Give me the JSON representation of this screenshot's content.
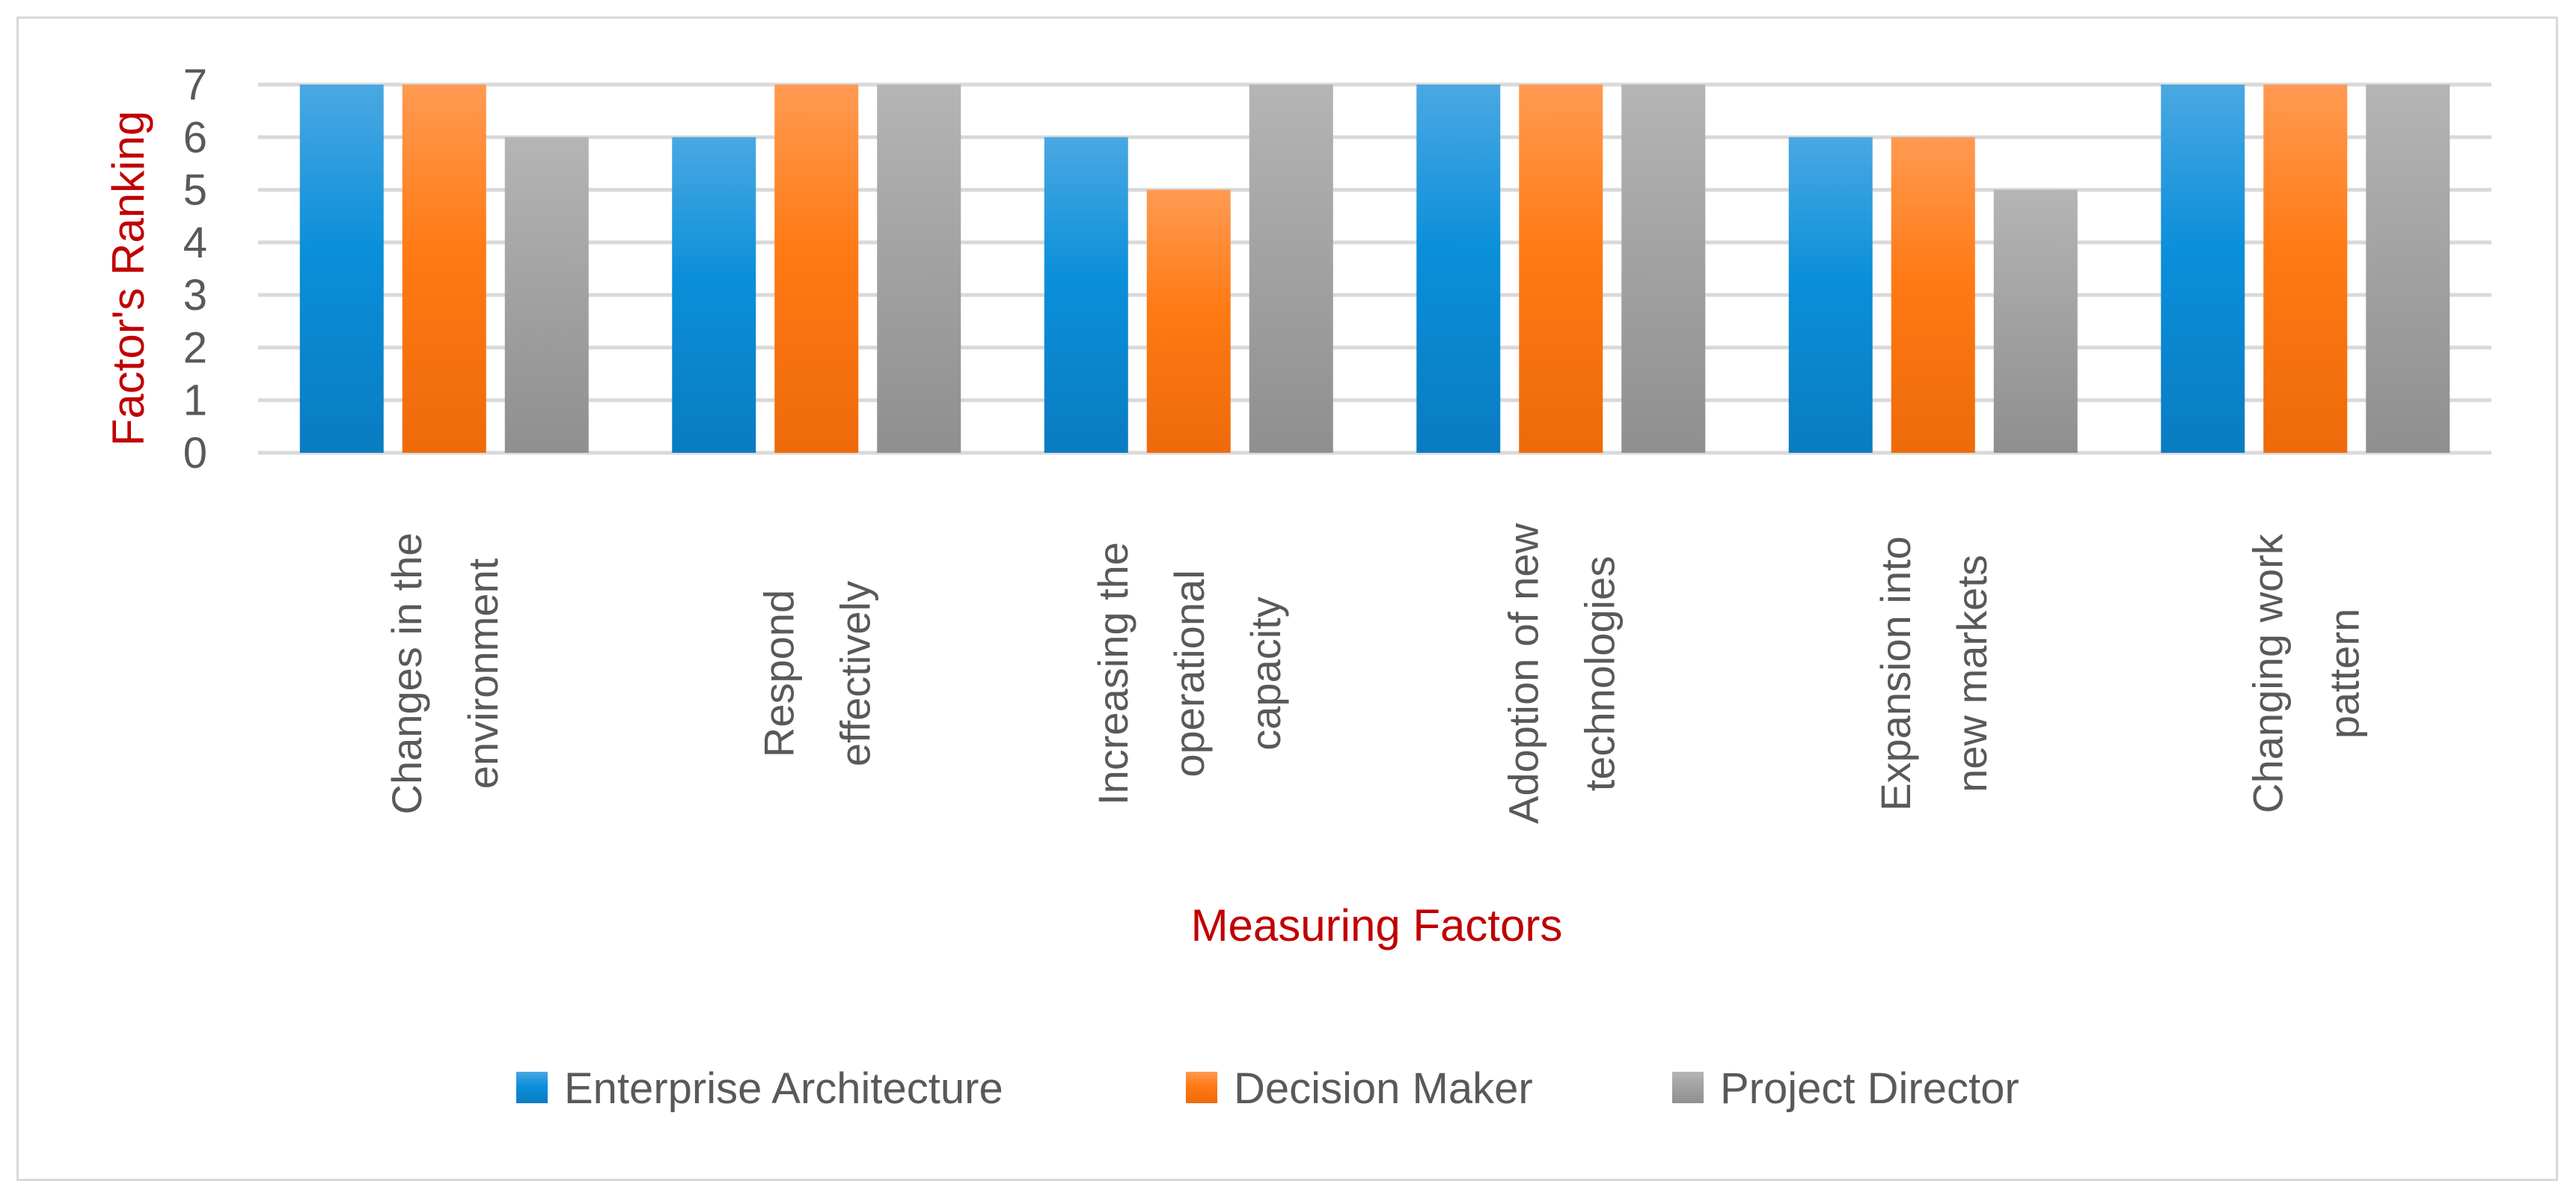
{
  "chart_data": {
    "type": "bar",
    "title": "",
    "xlabel": "Measuring Factors",
    "ylabel": "Factor's Ranking",
    "ylim": [
      0,
      7
    ],
    "yticks": [
      0,
      1,
      2,
      3,
      4,
      5,
      6,
      7
    ],
    "grid": true,
    "legend_position": "bottom",
    "categories": [
      [
        "Changes in the",
        "environment"
      ],
      [
        "Respond",
        "effectively"
      ],
      [
        "Increasing the",
        "operational",
        "capacity"
      ],
      [
        "Adoption of new",
        "technologies"
      ],
      [
        "Expansion into",
        "new markets"
      ],
      [
        "Changing work",
        "pattern"
      ]
    ],
    "series": [
      {
        "name": "Enterprise Architecture",
        "color": "#0f93d8",
        "values": [
          7,
          6,
          6,
          7,
          6,
          7
        ]
      },
      {
        "name": "Decision Maker",
        "color": "#ff7a1a",
        "values": [
          7,
          7,
          5,
          7,
          6,
          7
        ]
      },
      {
        "name": "Project Director",
        "color": "#9e9e9e",
        "values": [
          6,
          7,
          7,
          7,
          5,
          7
        ]
      }
    ]
  }
}
